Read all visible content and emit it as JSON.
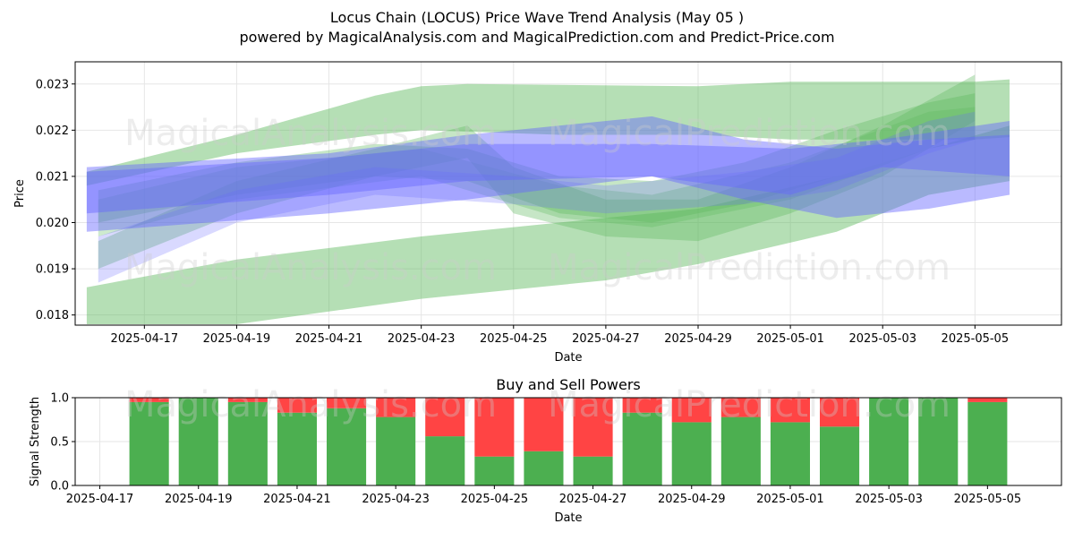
{
  "title_line1": "Locus Chain (LOCUS) Price Wave Trend Analysis (May 05 )",
  "title_line2": "powered by MagicalAnalysis.com and MagicalPrediction.com and Predict-Price.com",
  "watermarks": [
    "MagicalAnalysis.com",
    "MagicalPrediction.com"
  ],
  "colors": {
    "green": "#4caf50",
    "red": "#ff4444",
    "blue": "#6666ff",
    "green_band": "#5cb85c"
  },
  "chart_data": [
    {
      "type": "area",
      "xlabel": "Date",
      "ylabel": "Price",
      "grid": true,
      "x_ticks": [
        "2025-04-17",
        "2025-04-19",
        "2025-04-21",
        "2025-04-23",
        "2025-04-25",
        "2025-04-27",
        "2025-04-29",
        "2025-05-01",
        "2025-05-03",
        "2025-05-05"
      ],
      "y_ticks": [
        "0.018",
        "0.019",
        "0.020",
        "0.021",
        "0.022",
        "0.023"
      ],
      "ylim": [
        0.01778,
        0.02348
      ],
      "xlim": [
        "2025-04-15T12:00",
        "2025-05-06T21:00"
      ],
      "bands": [
        {
          "color": "green",
          "opacity": 0.45,
          "upper": [
            [
              "2025-04-15T18:00",
              0.0211
            ],
            [
              "2025-04-19",
              0.0219
            ],
            [
              "2025-04-22",
              0.02275
            ],
            [
              "2025-04-23",
              0.02295
            ],
            [
              "2025-04-24",
              0.023
            ],
            [
              "2025-04-29",
              0.02295
            ],
            [
              "2025-05-01",
              0.02305
            ],
            [
              "2025-05-05",
              0.02305
            ],
            [
              "2025-05-05T18:00",
              0.0231
            ]
          ],
          "lower": [
            [
              "2025-04-15T18:00",
              0.0208
            ],
            [
              "2025-04-19",
              0.0215
            ],
            [
              "2025-04-22",
              0.0219
            ],
            [
              "2025-04-23",
              0.022
            ],
            [
              "2025-04-26",
              0.0219
            ],
            [
              "2025-04-29",
              0.0219
            ],
            [
              "2025-05-01",
              0.0218
            ],
            [
              "2025-05-05",
              0.0218
            ],
            [
              "2025-05-05T18:00",
              0.02185
            ]
          ]
        },
        {
          "color": "green",
          "opacity": 0.45,
          "upper": [
            [
              "2025-04-15T18:00",
              0.0186
            ],
            [
              "2025-04-19",
              0.0192
            ],
            [
              "2025-04-23",
              0.0197
            ],
            [
              "2025-04-27",
              0.0201
            ],
            [
              "2025-04-29",
              0.0203
            ],
            [
              "2025-05-02",
              0.021
            ],
            [
              "2025-05-04",
              0.0216
            ],
            [
              "2025-05-05T18:00",
              0.0221
            ]
          ],
          "lower": [
            [
              "2025-04-15T18:00",
              0.0178
            ],
            [
              "2025-04-19",
              0.0178
            ],
            [
              "2025-04-23",
              0.01835
            ],
            [
              "2025-04-27",
              0.01875
            ],
            [
              "2025-04-29",
              0.0191
            ],
            [
              "2025-05-02",
              0.0198
            ],
            [
              "2025-05-04",
              0.0206
            ],
            [
              "2025-05-05T18:00",
              0.0209
            ]
          ]
        },
        {
          "color": "green",
          "opacity": 0.35,
          "upper": [
            [
              "2025-04-16",
              0.0196
            ],
            [
              "2025-04-19",
              0.0209
            ],
            [
              "2025-04-22",
              0.0216
            ],
            [
              "2025-04-24",
              0.0221
            ],
            [
              "2025-04-25",
              0.0212
            ],
            [
              "2025-04-27",
              0.0205
            ],
            [
              "2025-04-29",
              0.0205
            ],
            [
              "2025-05-01",
              0.0212
            ],
            [
              "2025-05-03",
              0.0221
            ],
            [
              "2025-05-05",
              0.0232
            ]
          ],
          "lower": [
            [
              "2025-04-16",
              0.019
            ],
            [
              "2025-04-19",
              0.0202
            ],
            [
              "2025-04-22",
              0.021
            ],
            [
              "2025-04-24",
              0.0214
            ],
            [
              "2025-04-25",
              0.0202
            ],
            [
              "2025-04-27",
              0.0197
            ],
            [
              "2025-04-29",
              0.0196
            ],
            [
              "2025-05-01",
              0.0202
            ],
            [
              "2025-05-03",
              0.021
            ],
            [
              "2025-05-05",
              0.0222
            ]
          ]
        },
        {
          "color": "green",
          "opacity": 0.35,
          "upper": [
            [
              "2025-04-16",
              0.0207
            ],
            [
              "2025-04-19",
              0.0213
            ],
            [
              "2025-04-22",
              0.0217
            ],
            [
              "2025-04-24",
              0.0216
            ],
            [
              "2025-04-26",
              0.021
            ],
            [
              "2025-04-28",
              0.0209
            ],
            [
              "2025-04-30",
              0.0213
            ],
            [
              "2025-05-02",
              0.022
            ],
            [
              "2025-05-04",
              0.0226
            ],
            [
              "2025-05-05",
              0.0228
            ]
          ],
          "lower": [
            [
              "2025-04-16",
              0.02
            ],
            [
              "2025-04-19",
              0.0206
            ],
            [
              "2025-04-22",
              0.021
            ],
            [
              "2025-04-24",
              0.0209
            ],
            [
              "2025-04-26",
              0.0202
            ],
            [
              "2025-04-28",
              0.02
            ],
            [
              "2025-04-30",
              0.0204
            ],
            [
              "2025-05-02",
              0.021
            ],
            [
              "2025-05-04",
              0.0216
            ],
            [
              "2025-05-05",
              0.0218
            ]
          ]
        },
        {
          "color": "green",
          "opacity": 0.3,
          "upper": [
            [
              "2025-04-16",
              0.0205
            ],
            [
              "2025-04-19",
              0.0212
            ],
            [
              "2025-04-23",
              0.0216
            ],
            [
              "2025-04-26",
              0.0208
            ],
            [
              "2025-04-28",
              0.0206
            ],
            [
              "2025-05-01",
              0.0213
            ],
            [
              "2025-05-04",
              0.0224
            ],
            [
              "2025-05-05",
              0.0225
            ]
          ],
          "lower": [
            [
              "2025-04-16",
              0.0197
            ],
            [
              "2025-04-19",
              0.0205
            ],
            [
              "2025-04-23",
              0.021
            ],
            [
              "2025-04-26",
              0.0201
            ],
            [
              "2025-04-28",
              0.0199
            ],
            [
              "2025-05-01",
              0.0205
            ],
            [
              "2025-05-04",
              0.0216
            ],
            [
              "2025-05-05",
              0.0218
            ]
          ]
        },
        {
          "color": "blue",
          "opacity": 0.45,
          "upper": [
            [
              "2025-04-15T18:00",
              0.0212
            ],
            [
              "2025-04-21",
              0.0215
            ],
            [
              "2025-04-24",
              0.0219
            ],
            [
              "2025-04-28",
              0.0223
            ],
            [
              "2025-04-30",
              0.0218
            ],
            [
              "2025-05-02",
              0.0216
            ],
            [
              "2025-05-04",
              0.0218
            ],
            [
              "2025-05-05T18:00",
              0.0219
            ]
          ],
          "lower": [
            [
              "2025-04-15T18:00",
              0.0198
            ],
            [
              "2025-04-21",
              0.0202
            ],
            [
              "2025-04-24",
              0.0205
            ],
            [
              "2025-04-28",
              0.021
            ],
            [
              "2025-04-30",
              0.0205
            ],
            [
              "2025-05-02",
              0.0201
            ],
            [
              "2025-05-04",
              0.0203
            ],
            [
              "2025-05-05T18:00",
              0.0206
            ]
          ]
        },
        {
          "color": "blue",
          "opacity": 0.45,
          "upper": [
            [
              "2025-04-15T18:00",
              0.0211
            ],
            [
              "2025-04-21",
              0.0214
            ],
            [
              "2025-04-24",
              0.0217
            ],
            [
              "2025-04-28",
              0.0217
            ],
            [
              "2025-05-01",
              0.0216
            ],
            [
              "2025-05-03",
              0.0218
            ],
            [
              "2025-05-05T18:00",
              0.0222
            ]
          ],
          "lower": [
            [
              "2025-04-15T18:00",
              0.0202
            ],
            [
              "2025-04-21",
              0.0206
            ],
            [
              "2025-04-24",
              0.0209
            ],
            [
              "2025-04-28",
              0.021
            ],
            [
              "2025-05-01",
              0.0206
            ],
            [
              "2025-05-03",
              0.0212
            ],
            [
              "2025-05-05T18:00",
              0.021
            ]
          ]
        },
        {
          "color": "blue",
          "opacity": 0.25,
          "upper": [
            [
              "2025-04-16",
              0.0197
            ],
            [
              "2025-04-19",
              0.0207
            ],
            [
              "2025-04-22",
              0.0212
            ],
            [
              "2025-04-25",
              0.021
            ],
            [
              "2025-04-27",
              0.0208
            ],
            [
              "2025-04-30",
              0.0211
            ],
            [
              "2025-05-02",
              0.0214
            ],
            [
              "2025-05-04",
              0.0222
            ],
            [
              "2025-05-05",
              0.0224
            ]
          ],
          "lower": [
            [
              "2025-04-16",
              0.0187
            ],
            [
              "2025-04-19",
              0.02
            ],
            [
              "2025-04-22",
              0.0206
            ],
            [
              "2025-04-25",
              0.0204
            ],
            [
              "2025-04-27",
              0.0202
            ],
            [
              "2025-04-30",
              0.0204
            ],
            [
              "2025-05-02",
              0.0207
            ],
            [
              "2025-05-04",
              0.0215
            ],
            [
              "2025-05-05",
              0.0218
            ]
          ]
        }
      ]
    },
    {
      "type": "bar",
      "title": "Buy and Sell Powers",
      "xlabel": "Date",
      "ylabel": "Signal Strength",
      "grid": true,
      "ylim": [
        0,
        1.0
      ],
      "y_ticks": [
        "0.0",
        "0.5",
        "1.0"
      ],
      "x_ticks": [
        "2025-04-17",
        "2025-04-19",
        "2025-04-21",
        "2025-04-23",
        "2025-04-25",
        "2025-04-27",
        "2025-04-29",
        "2025-05-01",
        "2025-05-03",
        "2025-05-05"
      ],
      "xlim": [
        "2025-04-16T12:00",
        "2025-05-06T12:00"
      ],
      "categories": [
        "2025-04-18",
        "2025-04-19",
        "2025-04-20",
        "2025-04-21",
        "2025-04-22",
        "2025-04-23",
        "2025-04-24",
        "2025-04-25",
        "2025-04-26",
        "2025-04-27",
        "2025-04-28",
        "2025-04-29",
        "2025-04-30",
        "2025-05-01",
        "2025-05-02",
        "2025-05-03",
        "2025-05-04",
        "2025-05-05"
      ],
      "series": [
        {
          "name": "Buy",
          "color": "green",
          "values": [
            0.95,
            1.0,
            0.95,
            0.83,
            0.88,
            0.78,
            0.56,
            0.33,
            0.39,
            0.33,
            0.83,
            0.72,
            0.78,
            0.72,
            0.67,
            1.0,
            1.0,
            0.95
          ]
        },
        {
          "name": "Sell",
          "color": "red",
          "values": [
            0.05,
            0.0,
            0.05,
            0.17,
            0.12,
            0.22,
            0.44,
            0.67,
            0.61,
            0.67,
            0.17,
            0.28,
            0.22,
            0.28,
            0.33,
            0.0,
            0.0,
            0.05
          ]
        }
      ]
    }
  ]
}
